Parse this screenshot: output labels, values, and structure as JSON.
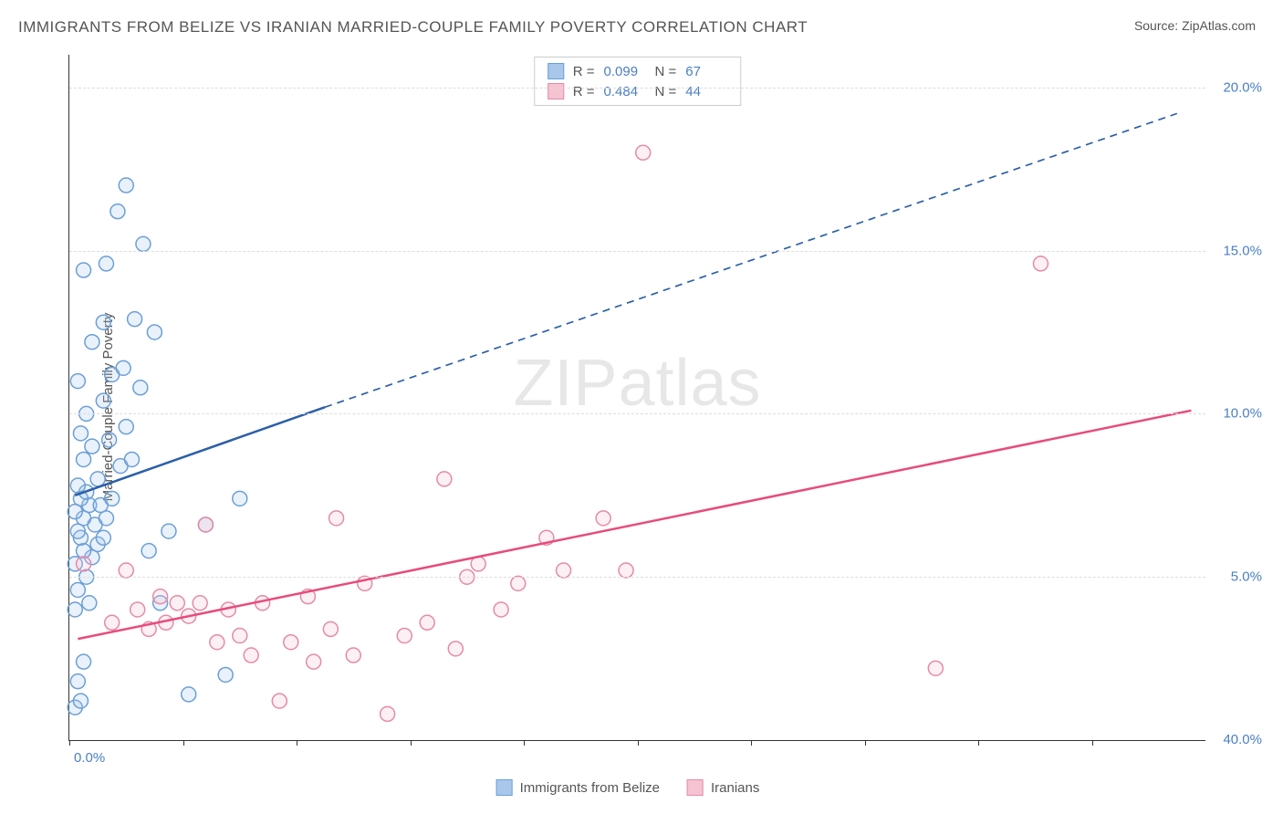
{
  "header": {
    "title": "IMMIGRANTS FROM BELIZE VS IRANIAN MARRIED-COUPLE FAMILY POVERTY CORRELATION CHART",
    "source_prefix": "Source: ",
    "source_name": "ZipAtlas.com"
  },
  "watermark": {
    "part1": "ZIP",
    "part2": "atlas"
  },
  "chart": {
    "type": "scatter",
    "y_axis_label": "Married-Couple Family Poverty",
    "xlim": [
      0,
      40
    ],
    "ylim": [
      0,
      21
    ],
    "x_origin_label": "0.0%",
    "x_max_label": "40.0%",
    "x_ticks": [
      0,
      4,
      8,
      12,
      16,
      20,
      24,
      28,
      32,
      36
    ],
    "y_gridlines": [
      {
        "value": 5,
        "label": "5.0%"
      },
      {
        "value": 10,
        "label": "10.0%"
      },
      {
        "value": 15,
        "label": "15.0%"
      },
      {
        "value": 20,
        "label": "20.0%"
      }
    ],
    "marker_radius": 8,
    "marker_stroke_width": 1.5,
    "marker_fill_opacity": 0.25,
    "grid_color": "#dddddd",
    "axis_color": "#333333",
    "background_color": "#ffffff",
    "series": [
      {
        "name": "Immigrants from Belize",
        "color_stroke": "#6b9fd8",
        "color_fill": "#a8c7eb",
        "stats": {
          "R": "0.099",
          "N": "67"
        },
        "trendline": {
          "solid": {
            "x1": 0.2,
            "y1": 7.5,
            "x2": 9,
            "y2": 10.2
          },
          "dashed": {
            "x1": 9,
            "y1": 10.2,
            "x2": 39,
            "y2": 19.2
          },
          "color": "#2b5fa8",
          "width": 2.5
        },
        "points": [
          [
            0.2,
            1.0
          ],
          [
            0.4,
            1.2
          ],
          [
            0.3,
            1.8
          ],
          [
            0.5,
            2.4
          ],
          [
            0.2,
            4.0
          ],
          [
            0.7,
            4.2
          ],
          [
            0.3,
            4.6
          ],
          [
            0.6,
            5.0
          ],
          [
            0.2,
            5.4
          ],
          [
            0.8,
            5.6
          ],
          [
            0.5,
            5.8
          ],
          [
            1.0,
            6.0
          ],
          [
            0.4,
            6.2
          ],
          [
            1.2,
            6.2
          ],
          [
            0.3,
            6.4
          ],
          [
            0.9,
            6.6
          ],
          [
            0.5,
            6.8
          ],
          [
            1.3,
            6.8
          ],
          [
            0.2,
            7.0
          ],
          [
            0.7,
            7.2
          ],
          [
            1.1,
            7.2
          ],
          [
            0.4,
            7.4
          ],
          [
            1.5,
            7.4
          ],
          [
            0.6,
            7.6
          ],
          [
            0.3,
            7.8
          ],
          [
            1.0,
            8.0
          ],
          [
            1.8,
            8.4
          ],
          [
            0.5,
            8.6
          ],
          [
            2.2,
            8.6
          ],
          [
            0.8,
            9.0
          ],
          [
            1.4,
            9.2
          ],
          [
            0.4,
            9.4
          ],
          [
            2.0,
            9.6
          ],
          [
            0.6,
            10.0
          ],
          [
            1.2,
            10.4
          ],
          [
            2.5,
            10.8
          ],
          [
            0.3,
            11.0
          ],
          [
            1.5,
            11.2
          ],
          [
            1.9,
            11.4
          ],
          [
            0.8,
            12.2
          ],
          [
            3.0,
            12.5
          ],
          [
            1.2,
            12.8
          ],
          [
            2.3,
            12.9
          ],
          [
            0.5,
            14.4
          ],
          [
            1.3,
            14.6
          ],
          [
            2.6,
            15.2
          ],
          [
            1.7,
            16.2
          ],
          [
            2.0,
            17.0
          ],
          [
            4.2,
            1.4
          ],
          [
            5.5,
            2.0
          ],
          [
            3.2,
            4.2
          ],
          [
            2.8,
            5.8
          ],
          [
            3.5,
            6.4
          ],
          [
            4.8,
            6.6
          ],
          [
            6.0,
            7.4
          ]
        ]
      },
      {
        "name": "Iranians",
        "color_stroke": "#e68aa5",
        "color_fill": "#f5c3d2",
        "stats": {
          "R": "0.484",
          "N": "44"
        },
        "trendline": {
          "solid": {
            "x1": 0.3,
            "y1": 3.1,
            "x2": 39.5,
            "y2": 10.1
          },
          "dashed": null,
          "color": "#e84b7a",
          "width": 2.5
        },
        "points": [
          [
            0.5,
            5.4
          ],
          [
            1.5,
            3.6
          ],
          [
            2.0,
            5.2
          ],
          [
            2.4,
            4.0
          ],
          [
            2.8,
            3.4
          ],
          [
            3.2,
            4.4
          ],
          [
            3.4,
            3.6
          ],
          [
            3.8,
            4.2
          ],
          [
            4.2,
            3.8
          ],
          [
            4.6,
            4.2
          ],
          [
            4.8,
            6.6
          ],
          [
            5.2,
            3.0
          ],
          [
            5.6,
            4.0
          ],
          [
            6.0,
            3.2
          ],
          [
            6.4,
            2.6
          ],
          [
            6.8,
            4.2
          ],
          [
            7.4,
            1.2
          ],
          [
            7.8,
            3.0
          ],
          [
            8.4,
            4.4
          ],
          [
            8.6,
            2.4
          ],
          [
            9.2,
            3.4
          ],
          [
            9.4,
            6.8
          ],
          [
            10.0,
            2.6
          ],
          [
            10.4,
            4.8
          ],
          [
            11.2,
            0.8
          ],
          [
            11.8,
            3.2
          ],
          [
            12.6,
            3.6
          ],
          [
            13.2,
            8.0
          ],
          [
            13.6,
            2.8
          ],
          [
            14.0,
            5.0
          ],
          [
            14.4,
            5.4
          ],
          [
            15.2,
            4.0
          ],
          [
            15.8,
            4.8
          ],
          [
            16.8,
            6.2
          ],
          [
            17.4,
            5.2
          ],
          [
            18.8,
            6.8
          ],
          [
            19.6,
            5.2
          ],
          [
            20.2,
            18.0
          ],
          [
            30.5,
            2.2
          ],
          [
            34.2,
            14.6
          ]
        ]
      }
    ],
    "stats_labels": {
      "R": "R =",
      "N": "N ="
    },
    "legend": [
      {
        "label": "Immigrants from Belize",
        "swatch_fill": "#a8c7eb",
        "swatch_border": "#6b9fd8"
      },
      {
        "label": "Iranians",
        "swatch_fill": "#f5c3d2",
        "swatch_border": "#e68aa5"
      }
    ]
  }
}
